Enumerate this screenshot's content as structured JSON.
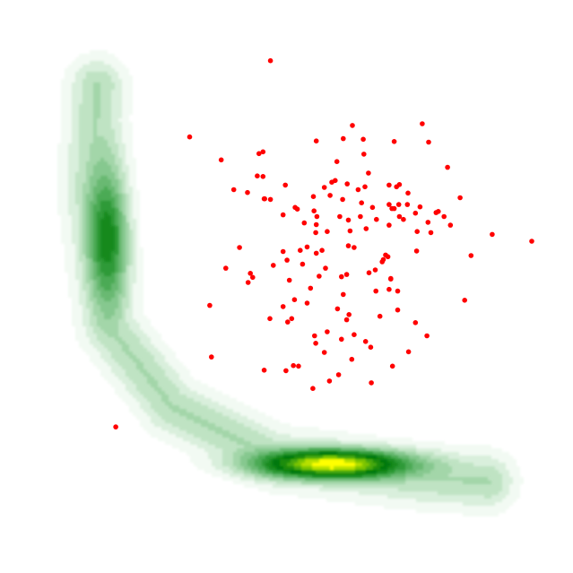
{
  "chart_data": {
    "type": "scatter",
    "title": "",
    "xlabel": "",
    "ylabel": "",
    "axes_visible": false,
    "grid": false,
    "legend": "none",
    "xlim": [
      0,
      10
    ],
    "ylim": [
      0,
      10
    ],
    "density": {
      "kind": "filled-contour",
      "levels": 15,
      "colormap": [
        "#f2faf3",
        "#d9efdc",
        "#bfe3c3",
        "#a3d6a9",
        "#86c88f",
        "#69b972",
        "#4caa55",
        "#2e9a39",
        "#15891f",
        "#04780c",
        "#1a8c10",
        "#4aa80b",
        "#7dc506",
        "#b7e003",
        "#ffff00"
      ],
      "line_color": "#ffffff",
      "modes": [
        {
          "x": 1.9,
          "y": 5.9
        },
        {
          "x": 5.8,
          "y": 1.9
        }
      ],
      "arc_points": [
        [
          1.7,
          8.5
        ],
        [
          1.6,
          6.6
        ],
        [
          1.9,
          4.3
        ],
        [
          3.0,
          2.9
        ],
        [
          4.8,
          2.0
        ],
        [
          7.2,
          1.7
        ],
        [
          8.5,
          1.6
        ]
      ]
    },
    "points": {
      "color": "#ff0000",
      "x": [
        4.72,
        6.35,
        7.11,
        5.24,
        6.69,
        3.31,
        5.88,
        5.05,
        5.52,
        5.49,
        4.37,
        5.15,
        4.33,
        6.63,
        6.88,
        5.53,
        7.25,
        6.79,
        6.08,
        4.77,
        6.92,
        8.22,
        7.52,
        4.94,
        5.66,
        6.31,
        4.61,
        6.96,
        7.65,
        5.51,
        7.75,
        5.31,
        4.94,
        6.43,
        5.98,
        5.68,
        7.04,
        7.86,
        6.09,
        6.05,
        8.59,
        5.71,
        5.42,
        5.75,
        6.88,
        6.18,
        7.61,
        7.45,
        6.97,
        6.48,
        9.28,
        3.69,
        7.37,
        6.25,
        6.37,
        3.94,
        5.28,
        3.66,
        6.34,
        6.77,
        7.81,
        5.71,
        5.19,
        4.94,
        5.62,
        6.97,
        4.18,
        5.48,
        6.79,
        7.33,
        6.05,
        6.38,
        5.02,
        4.52,
        4.41,
        5.76,
        5.85,
        6.94,
        4.49,
        5.01,
        5.79,
        6.47,
        5.57,
        4.98,
        6.56,
        8.03,
        5.93,
        4.61,
        4.71,
        5.36,
        5.47,
        6.08,
        6.14,
        6.94,
        6.67,
        5.14,
        7.48,
        5.66,
        6.06,
        5.09,
        4.08,
        6.18,
        5.99,
        5.36,
        7.13,
        6.85,
        4.59,
        6.79,
        5.12,
        7.28,
        6.44,
        5.21,
        6.79,
        5.99,
        4.59,
        5.51,
        7.12,
        6.39,
        5.91,
        6.11,
        5.52,
        6.82,
        5.46,
        6.73,
        4.72,
        2.02,
        4.32,
        6.29,
        7.25,
        7.27,
        6.5,
        7.47,
        6.55,
        5.89,
        5.96,
        6.84,
        6.15,
        6.57,
        6.82,
        4.99,
        5.52,
        4.62,
        8.11,
        5.96,
        3.86
      ],
      "y": [
        8.94,
        7.31,
        6.43,
        5.63,
        5.47,
        7.61,
        7.18,
        5.11,
        6.08,
        4.14,
        5.23,
        6.38,
        5.07,
        4.48,
        6.36,
        6.22,
        6.28,
        6.77,
        5.71,
        5.37,
        6.74,
        5.54,
        5.94,
        5.61,
        6.73,
        6.46,
        6.53,
        6.43,
        6.31,
        5.94,
        6.22,
        6.11,
        6.25,
        6.98,
        6.52,
        5.32,
        6.17,
        6.07,
        4.51,
        4.42,
        5.91,
        5.96,
        4.97,
        3.35,
        7.53,
        5.68,
        6.29,
        4.14,
        6.78,
        3.32,
        5.79,
        3.77,
        7.84,
        6.69,
        6.74,
        5.32,
        5.39,
        4.67,
        7.57,
        5.52,
        7.08,
        4.21,
        6.35,
        4.65,
        5.63,
        6.22,
        5.68,
        6.32,
        4.95,
        6.39,
        5.21,
        4.04,
        4.38,
        7.32,
        5.16,
        6.59,
        6.85,
        4.59,
        6.93,
        5.46,
        6.82,
        3.94,
        5.18,
        6.77,
        4.92,
        6.55,
        6.22,
        3.54,
        4.44,
        5.69,
        6.57,
        6.16,
        3.73,
        4.92,
        5.43,
        4.77,
        7.52,
        3.85,
        6.79,
        4.44,
        6.69,
        4.16,
        4.86,
        4.71,
        3.86,
        3.61,
        7.35,
        6.07,
        3.62,
        5.96,
        5.24,
        3.61,
        6.43,
        7.58,
        6.92,
        4.01,
        6.63,
        6.01,
        3.46,
        5.97,
        5.58,
        5.14,
        3.22,
        5.55,
        6.52,
        2.55,
        6.64,
        6.22,
        4.37,
        5.62,
        6.38,
        6.12,
        5.29,
        4.61,
        5.17,
        6.36,
        7.81,
        6.17,
        5.13,
        3.53,
        7.54,
        6.53,
        4.76,
        4.08,
        7.21
      ]
    }
  }
}
